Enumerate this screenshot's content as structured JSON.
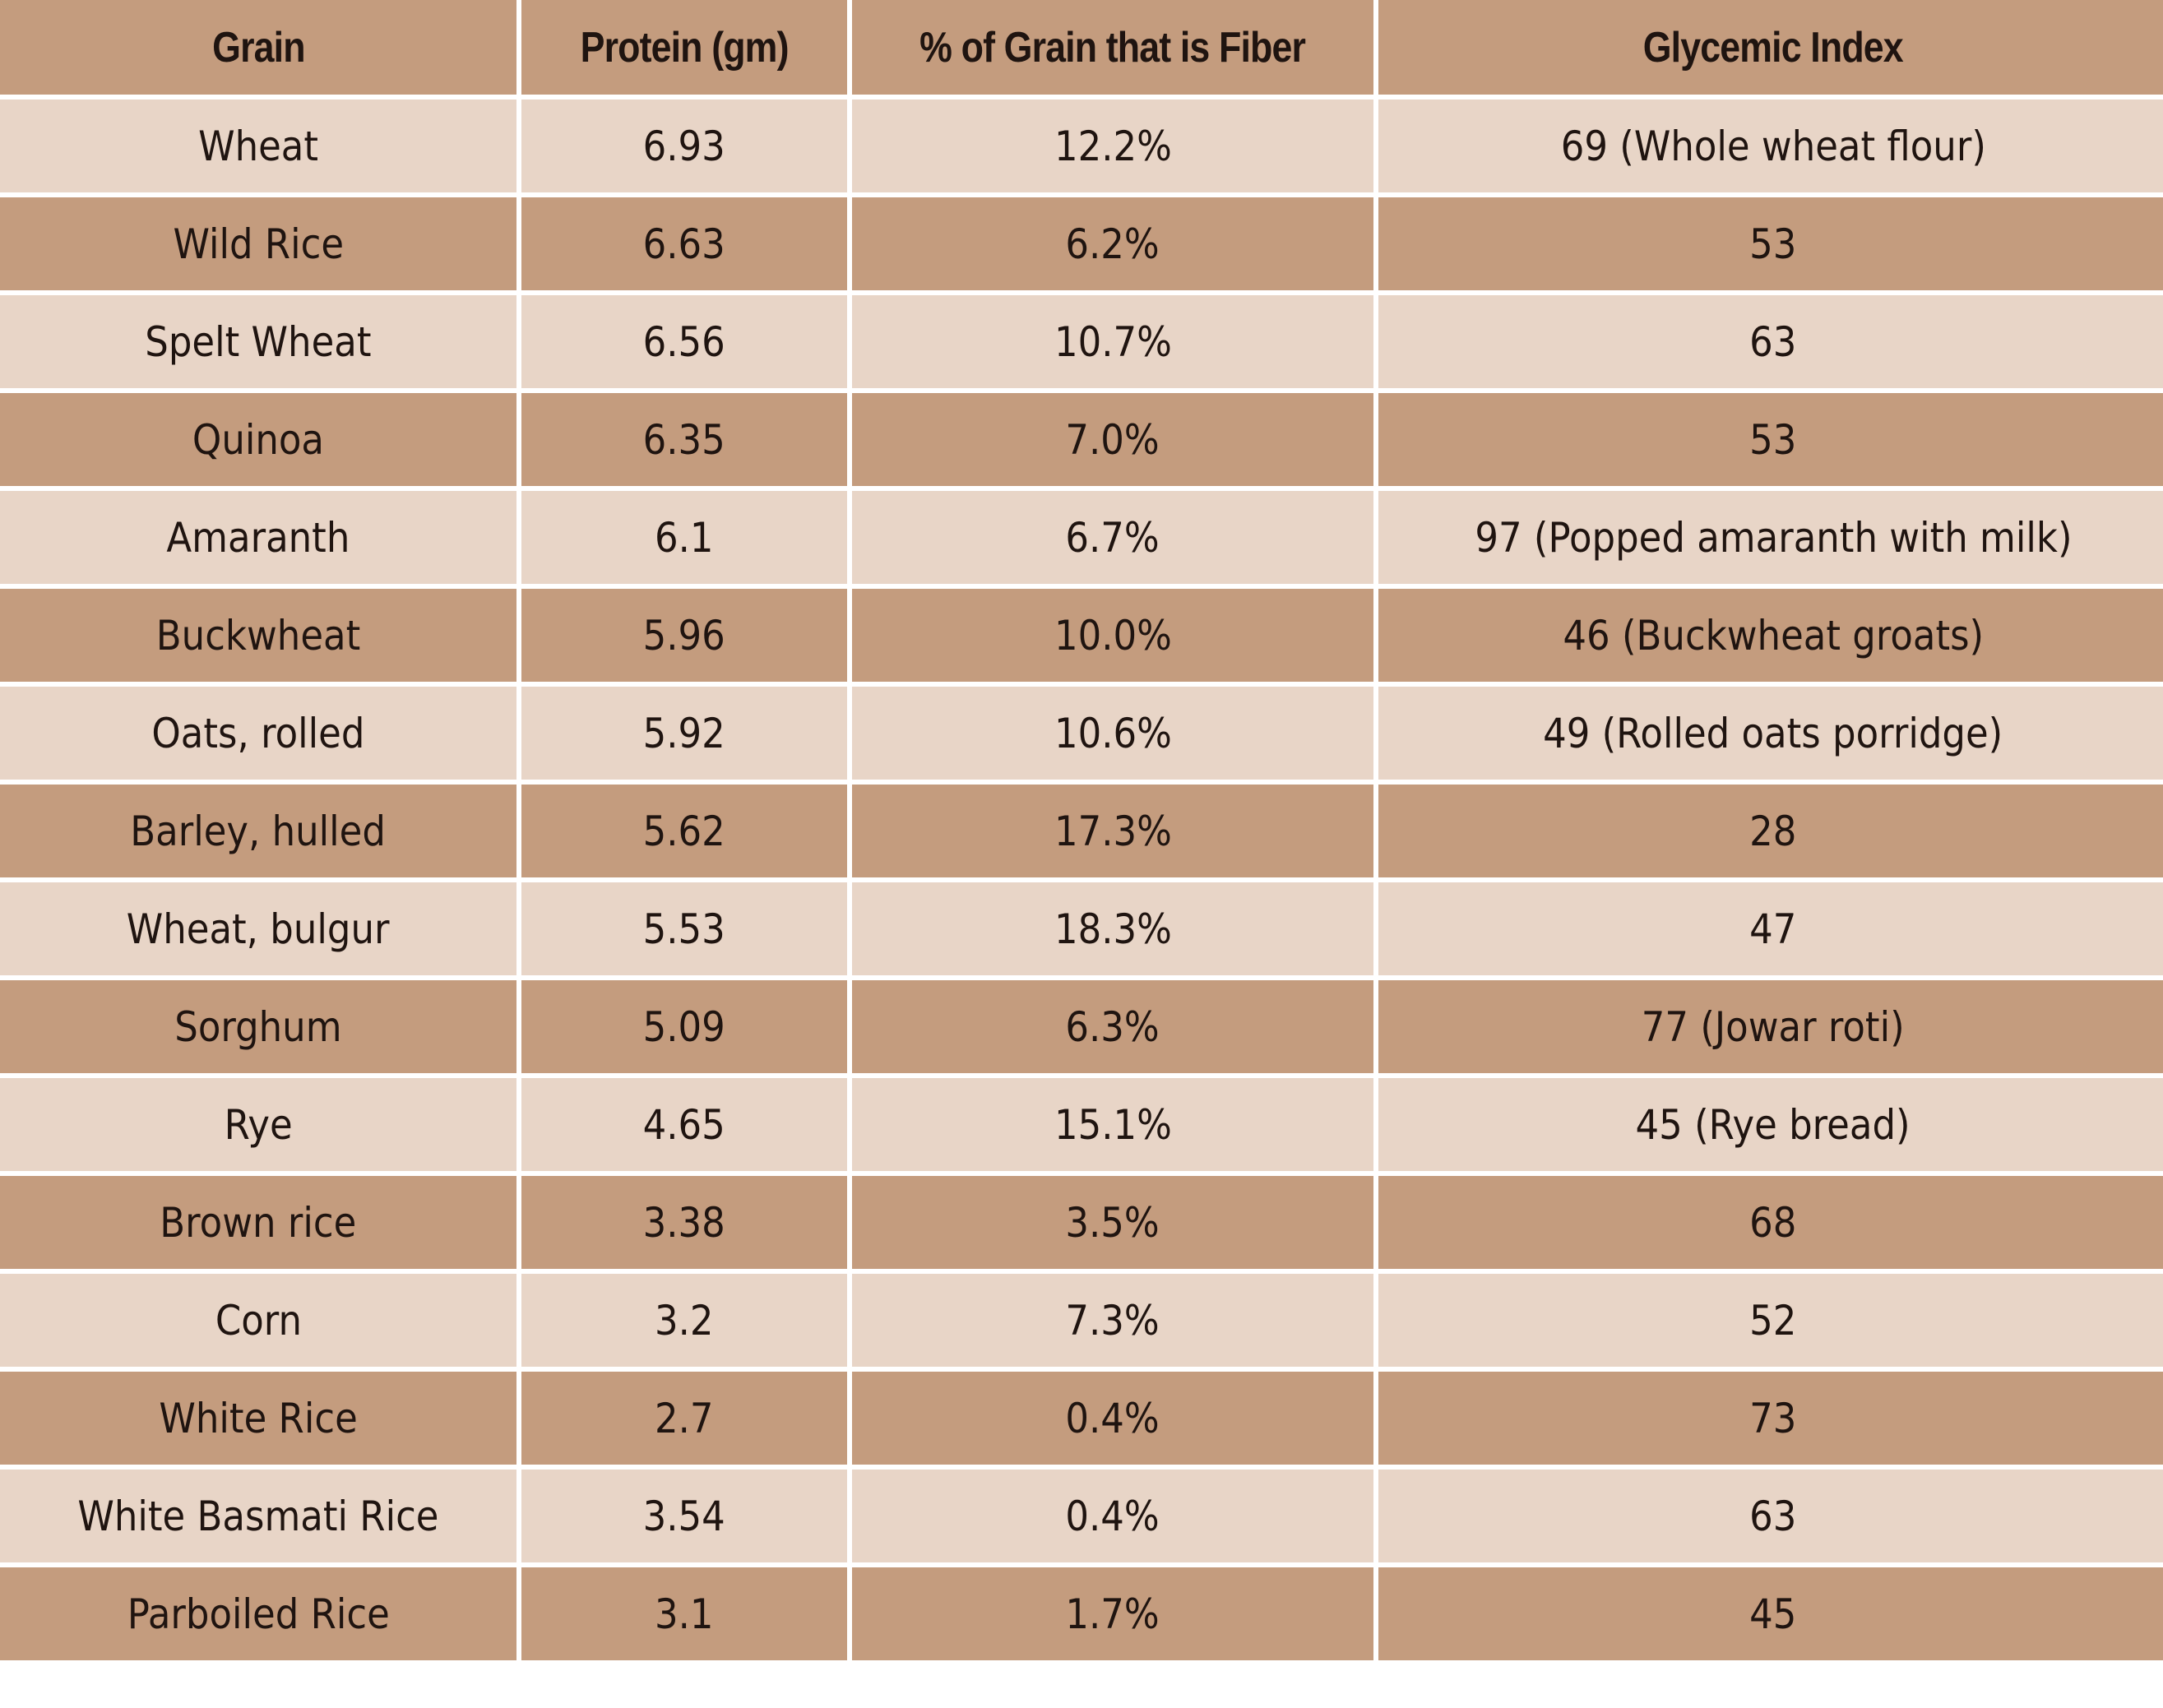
{
  "colors": {
    "header_bg": "#c49c7e",
    "row_light": "#e8d5c7",
    "row_dark": "#c49c7e",
    "text": "#1f1410"
  },
  "chart_data": {
    "type": "table",
    "columns": [
      "Grain",
      "Protein (gm)",
      "% of Grain that is Fiber",
      "Glycemic Index"
    ],
    "rows": [
      [
        "Wheat",
        "6.93",
        "12.2%",
        "69 (Whole wheat flour)"
      ],
      [
        "Wild Rice",
        "6.63",
        "6.2%",
        "53"
      ],
      [
        "Spelt Wheat",
        "6.56",
        "10.7%",
        "63"
      ],
      [
        "Quinoa",
        "6.35",
        "7.0%",
        "53"
      ],
      [
        "Amaranth",
        "6.1",
        "6.7%",
        "97 (Popped amaranth with milk)"
      ],
      [
        "Buckwheat",
        "5.96",
        "10.0%",
        "46 (Buckwheat groats)"
      ],
      [
        "Oats, rolled",
        "5.92",
        "10.6%",
        "49 (Rolled oats porridge)"
      ],
      [
        "Barley, hulled",
        "5.62",
        "17.3%",
        "28"
      ],
      [
        "Wheat, bulgur",
        "5.53",
        "18.3%",
        "47"
      ],
      [
        "Sorghum",
        "5.09",
        "6.3%",
        "77 (Jowar roti)"
      ],
      [
        "Rye",
        "4.65",
        "15.1%",
        "45 (Rye bread)"
      ],
      [
        "Brown rice",
        "3.38",
        "3.5%",
        "68"
      ],
      [
        "Corn",
        "3.2",
        "7.3%",
        "52"
      ],
      [
        "White Rice",
        "2.7",
        "0.4%",
        "73"
      ],
      [
        "White Basmati Rice",
        "3.54",
        "0.4%",
        "63"
      ],
      [
        "Parboiled Rice",
        "3.1",
        "1.7%",
        "45"
      ]
    ]
  }
}
